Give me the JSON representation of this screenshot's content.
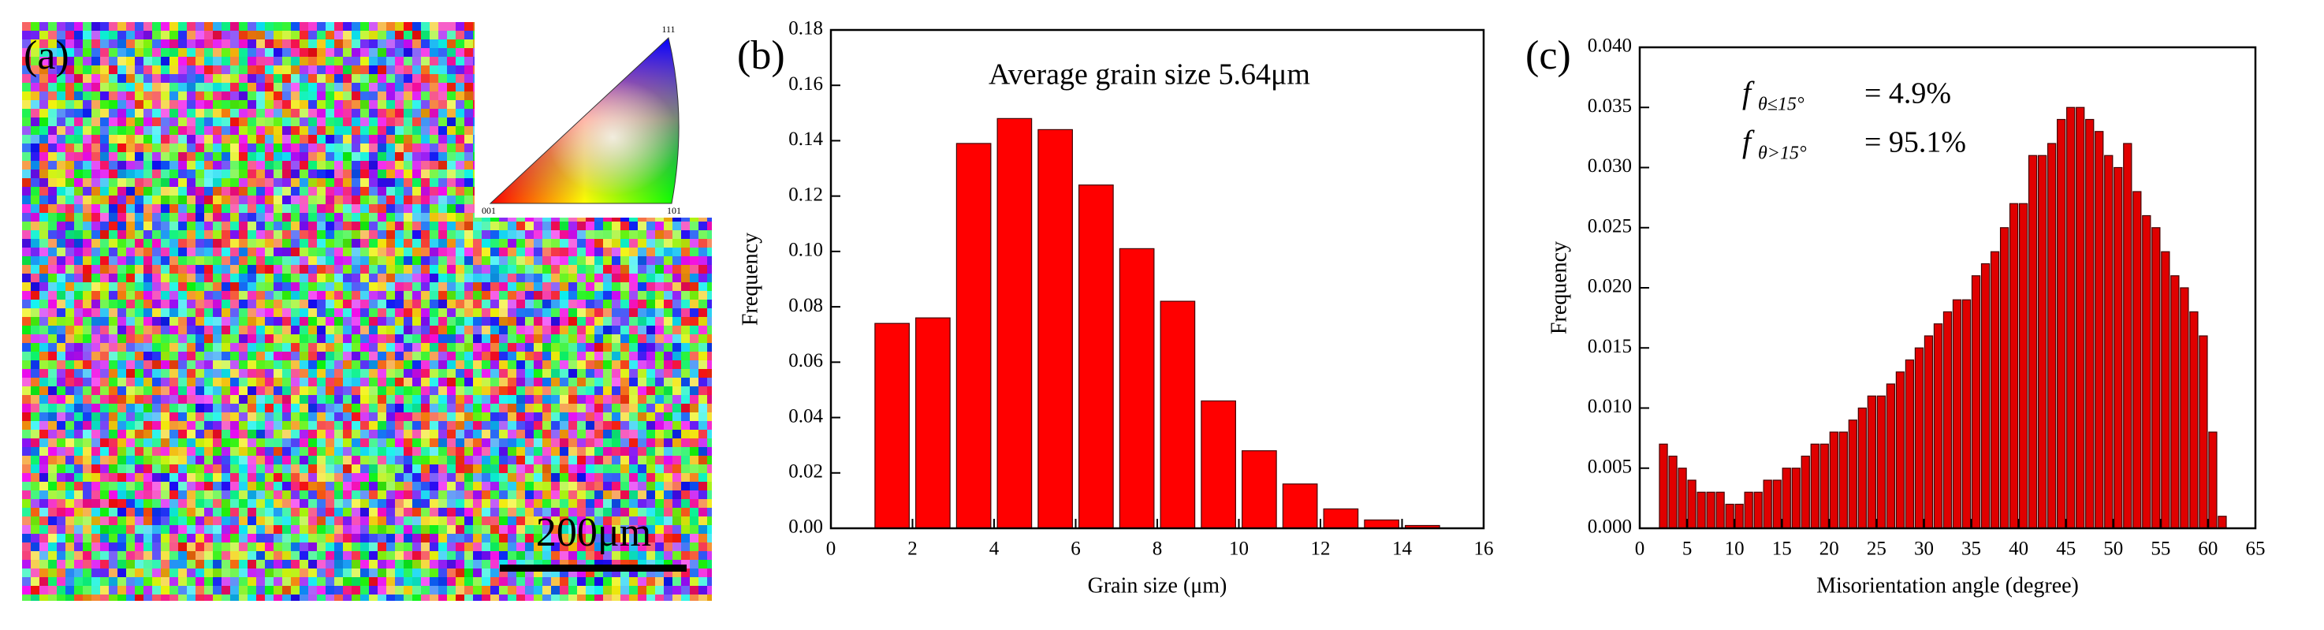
{
  "panel_a": {
    "label": "(a)",
    "scale_bar": "200μm",
    "ipf_labels": {
      "top": "111",
      "left": "001",
      "right": "101"
    }
  },
  "chart_data": [
    {
      "type": "histogram",
      "panel_label": "(b)",
      "title": "Average grain size 5.64μm",
      "x_label": "Grain size (μm)",
      "y_label": "Frequency",
      "color": "#ff0000",
      "bins": [
        1,
        2,
        3,
        4,
        5,
        6,
        7,
        8,
        9,
        10,
        11,
        12,
        13,
        14,
        15
      ],
      "values": [
        0.074,
        0.076,
        0.139,
        0.148,
        0.144,
        0.124,
        0.101,
        0.082,
        0.046,
        0.028,
        0.016,
        0.007,
        0.003,
        0.001
      ],
      "xlim": [
        0,
        16
      ],
      "xticks": [
        0,
        2,
        4,
        6,
        8,
        10,
        12,
        14,
        16
      ],
      "ylim": [
        0,
        0.18
      ],
      "yticks": [
        {
          "value": 0,
          "label": "0.00"
        },
        {
          "value": 0.02,
          "label": "0.02"
        },
        {
          "value": 0.04,
          "label": "0.04"
        },
        {
          "value": 0.06,
          "label": "0.06"
        },
        {
          "value": 0.08,
          "label": "0.08"
        },
        {
          "value": 0.1,
          "label": "0.10"
        },
        {
          "value": 0.12,
          "label": "0.12"
        },
        {
          "value": 0.14,
          "label": "0.14"
        },
        {
          "value": 0.16,
          "label": "0.16"
        },
        {
          "value": 0.18,
          "label": "0.18"
        }
      ]
    },
    {
      "type": "histogram",
      "panel_label": "(c)",
      "annotations": [
        {
          "symbol": "f",
          "subscript": "θ≤15°",
          "text": "= 4.9%"
        },
        {
          "symbol": "f",
          "subscript": "θ>15°",
          "text": "= 95.1%"
        }
      ],
      "x_label": "Misorientation angle (degree)",
      "y_label": "Frequency",
      "color": "#e00000",
      "bins": [
        2,
        3,
        4,
        5,
        6,
        7,
        8,
        9,
        10,
        11,
        12,
        13,
        14,
        15,
        16,
        17,
        18,
        19,
        20,
        21,
        22,
        23,
        24,
        25,
        26,
        27,
        28,
        29,
        30,
        31,
        32,
        33,
        34,
        35,
        36,
        37,
        38,
        39,
        40,
        41,
        42,
        43,
        44,
        45,
        46,
        47,
        48,
        49,
        50,
        51,
        52,
        53,
        54,
        55,
        56,
        57,
        58,
        59,
        60,
        61,
        62
      ],
      "values": [
        0.007,
        0.006,
        0.005,
        0.004,
        0.003,
        0.003,
        0.003,
        0.002,
        0.002,
        0.003,
        0.003,
        0.004,
        0.004,
        0.005,
        0.005,
        0.006,
        0.007,
        0.007,
        0.008,
        0.008,
        0.009,
        0.01,
        0.011,
        0.011,
        0.012,
        0.013,
        0.014,
        0.015,
        0.016,
        0.017,
        0.018,
        0.019,
        0.019,
        0.021,
        0.022,
        0.023,
        0.025,
        0.027,
        0.027,
        0.031,
        0.031,
        0.032,
        0.034,
        0.035,
        0.035,
        0.034,
        0.033,
        0.031,
        0.03,
        0.032,
        0.028,
        0.026,
        0.025,
        0.023,
        0.021,
        0.02,
        0.018,
        0.016,
        0.008,
        0.001
      ],
      "xlim": [
        0,
        65
      ],
      "xticks": [
        0,
        5,
        10,
        15,
        20,
        25,
        30,
        35,
        40,
        45,
        50,
        55,
        60,
        65
      ],
      "ylim": [
        0,
        0.04
      ],
      "yticks": [
        {
          "value": 0,
          "label": "0.000"
        },
        {
          "value": 0.005,
          "label": "0.005"
        },
        {
          "value": 0.01,
          "label": "0.010"
        },
        {
          "value": 0.015,
          "label": "0.015"
        },
        {
          "value": 0.02,
          "label": "0.020"
        },
        {
          "value": 0.025,
          "label": "0.025"
        },
        {
          "value": 0.03,
          "label": "0.030"
        },
        {
          "value": 0.035,
          "label": "0.035"
        },
        {
          "value": 0.04,
          "label": "0.040"
        }
      ]
    }
  ]
}
